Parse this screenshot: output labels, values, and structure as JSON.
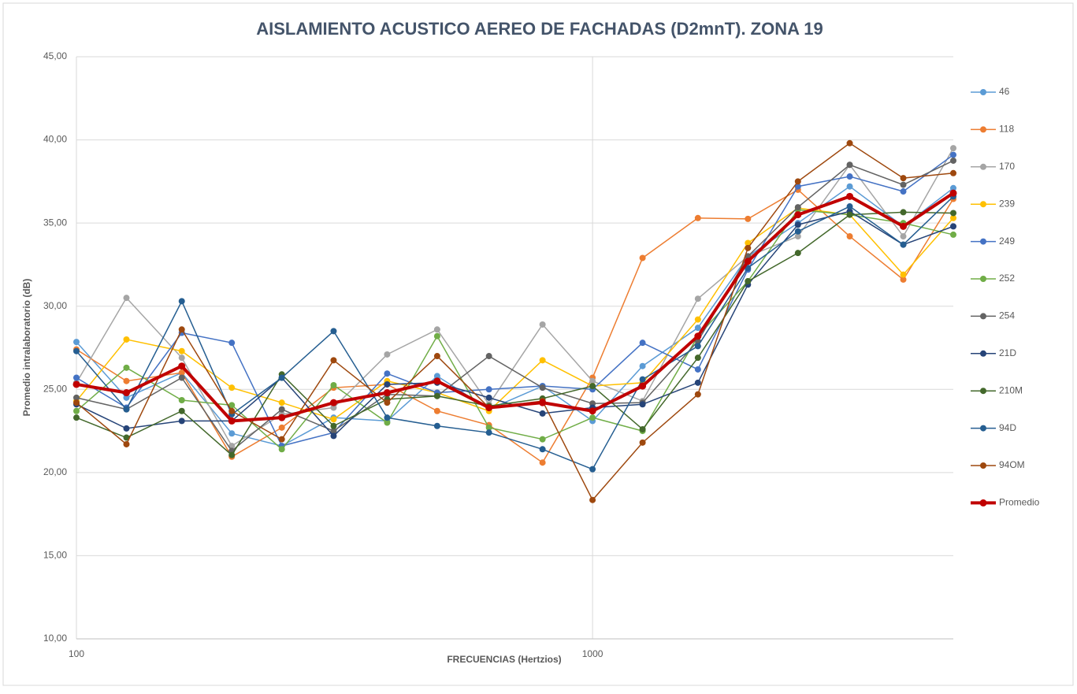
{
  "chart_data": {
    "type": "line",
    "title": "AISLAMIENTO ACUSTICO AEREO DE FACHADAS (D2mnT). ZONA 19",
    "x_label": "FRECUENCIAS (Hertzios)",
    "y_label": "Promedio intralaboratorio (dB)",
    "x": [
      100,
      125,
      160,
      200,
      250,
      315,
      400,
      500,
      630,
      800,
      1000,
      1250,
      1600,
      2000,
      2500,
      3150,
      4000,
      5000
    ],
    "xscale": "log",
    "xlim": [
      100,
      5000
    ],
    "xticks": [
      100,
      1000
    ],
    "ylim": [
      10,
      45
    ],
    "yticks": [
      {
        "value": 10,
        "label": "10,00"
      },
      {
        "value": 15,
        "label": "15,00"
      },
      {
        "value": 20,
        "label": "20,00"
      },
      {
        "value": 25,
        "label": "25,00"
      },
      {
        "value": 30,
        "label": "30,00"
      },
      {
        "value": 35,
        "label": "35,00"
      },
      {
        "value": 40,
        "label": "40,00"
      },
      {
        "value": 45,
        "label": "45,00"
      }
    ],
    "grid": true,
    "legend": "right",
    "series": [
      {
        "name": "46",
        "color": "#5B9BD5",
        "values": [
          27.85,
          24.5,
          26.0,
          22.35,
          21.6,
          23.3,
          23.1,
          25.8,
          23.8,
          25.2,
          23.1,
          26.4,
          28.7,
          33.0,
          35.0,
          37.2,
          34.8,
          37.1
        ]
      },
      {
        "name": "118",
        "color": "#ED7D31",
        "values": [
          27.4,
          25.5,
          26.0,
          20.95,
          22.7,
          25.1,
          25.3,
          23.7,
          22.85,
          20.6,
          25.7,
          32.9,
          35.3,
          35.25,
          37.0,
          34.2,
          31.6,
          36.45
        ]
      },
      {
        "name": "170",
        "color": "#A5A5A5",
        "values": [
          25.4,
          30.5,
          26.9,
          21.6,
          23.5,
          23.9,
          27.1,
          28.6,
          24.1,
          28.9,
          25.5,
          24.3,
          30.45,
          33.0,
          34.2,
          38.5,
          34.2,
          39.5
        ]
      },
      {
        "name": "239",
        "color": "#FFC000",
        "values": [
          24.3,
          28.0,
          27.3,
          25.1,
          24.2,
          23.2,
          25.5,
          24.8,
          23.7,
          26.75,
          25.2,
          25.4,
          29.2,
          33.8,
          35.9,
          35.5,
          31.9,
          35.3
        ]
      },
      {
        "name": "249",
        "color": "#4472C4",
        "values": [
          25.7,
          23.9,
          28.4,
          27.8,
          21.6,
          22.4,
          25.95,
          24.8,
          25.0,
          25.2,
          25.0,
          27.8,
          26.2,
          32.2,
          37.2,
          37.8,
          36.9,
          39.1
        ]
      },
      {
        "name": "252",
        "color": "#70AD47",
        "values": [
          23.7,
          26.3,
          24.35,
          24.05,
          21.4,
          25.25,
          23.0,
          28.2,
          22.7,
          22.0,
          23.3,
          22.5,
          28.2,
          31.5,
          35.8,
          35.5,
          35.0,
          34.3
        ]
      },
      {
        "name": "254",
        "color": "#636363",
        "values": [
          24.5,
          23.8,
          25.7,
          21.3,
          23.8,
          22.5,
          24.7,
          24.6,
          27.0,
          25.1,
          24.15,
          24.2,
          27.9,
          33.0,
          35.95,
          38.5,
          37.3,
          38.75
        ]
      },
      {
        "name": "21D",
        "color": "#264478",
        "values": [
          24.1,
          22.65,
          23.1,
          23.1,
          25.7,
          22.2,
          25.3,
          25.4,
          24.5,
          23.55,
          23.9,
          24.1,
          25.4,
          31.3,
          34.9,
          35.7,
          33.7,
          34.8
        ]
      },
      {
        "name": "210M",
        "color": "#43682B",
        "values": [
          23.3,
          22.1,
          23.7,
          21.05,
          25.9,
          22.8,
          24.4,
          24.6,
          24.0,
          24.45,
          25.2,
          22.6,
          26.9,
          31.5,
          33.2,
          35.5,
          35.65,
          35.6
        ]
      },
      {
        "name": "94D",
        "color": "#255E91",
        "values": [
          27.3,
          23.8,
          30.3,
          23.5,
          25.7,
          28.5,
          23.3,
          22.8,
          22.4,
          21.4,
          20.2,
          25.6,
          27.6,
          32.3,
          34.5,
          36.0,
          33.7,
          36.6
        ]
      },
      {
        "name": "94OM",
        "color": "#9E480E",
        "values": [
          24.2,
          21.7,
          28.6,
          23.7,
          22.0,
          26.75,
          24.2,
          27.0,
          23.9,
          24.3,
          18.35,
          21.8,
          24.7,
          33.5,
          37.5,
          39.8,
          37.7,
          38.0
        ]
      },
      {
        "name": "Promedio",
        "color": "#C00000",
        "values": [
          25.3,
          24.8,
          26.4,
          23.1,
          23.3,
          24.2,
          24.8,
          25.5,
          23.9,
          24.2,
          23.7,
          25.2,
          28.2,
          32.7,
          35.5,
          36.6,
          34.8,
          36.8
        ]
      }
    ]
  }
}
